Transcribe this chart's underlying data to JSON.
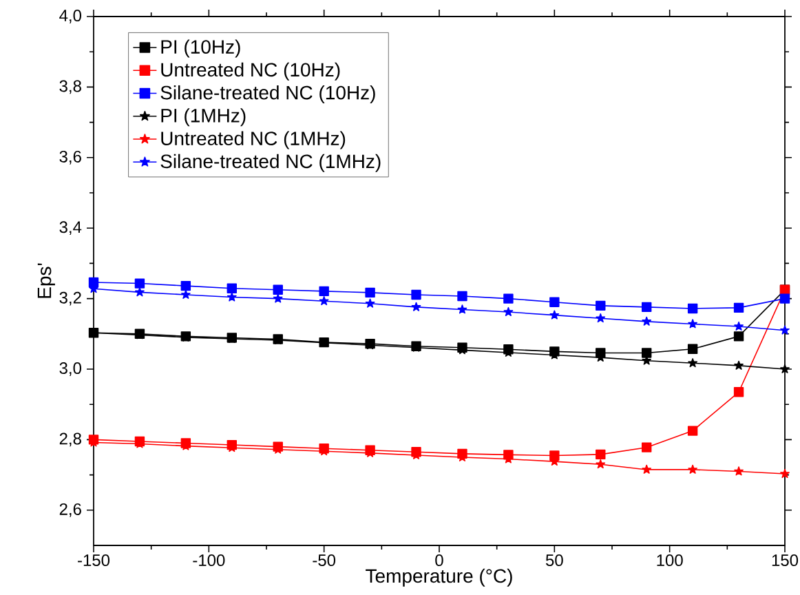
{
  "chart_data": {
    "type": "line",
    "xlabel": "Temperature (°C)",
    "ylabel": "Eps'",
    "x": [
      -150,
      -130,
      -110,
      -90,
      -70,
      -50,
      -30,
      -10,
      10,
      30,
      50,
      70,
      90,
      110,
      130,
      150
    ],
    "series": [
      {
        "name": "PI (10Hz)",
        "color": "#000000",
        "marker": "square",
        "values": [
          3.103,
          3.1,
          3.093,
          3.089,
          3.085,
          3.076,
          3.072,
          3.065,
          3.061,
          3.056,
          3.05,
          3.046,
          3.046,
          3.057,
          3.093,
          3.225
        ]
      },
      {
        "name": "Untreated NC (10Hz)",
        "color": "#ff0000",
        "marker": "square",
        "values": [
          2.8,
          2.795,
          2.79,
          2.785,
          2.78,
          2.775,
          2.77,
          2.765,
          2.76,
          2.757,
          2.755,
          2.758,
          2.778,
          2.825,
          2.935,
          3.225
        ]
      },
      {
        "name": "Silane-treated NC (10Hz)",
        "color": "#0000ff",
        "marker": "square",
        "values": [
          3.246,
          3.243,
          3.236,
          3.229,
          3.225,
          3.221,
          3.217,
          3.211,
          3.207,
          3.2,
          3.19,
          3.18,
          3.176,
          3.172,
          3.174,
          3.2
        ]
      },
      {
        "name": "PI (1MHz)",
        "color": "#000000",
        "marker": "star",
        "values": [
          3.103,
          3.097,
          3.09,
          3.086,
          3.082,
          3.075,
          3.068,
          3.061,
          3.054,
          3.047,
          3.04,
          3.033,
          3.024,
          3.017,
          3.01,
          3.0
        ]
      },
      {
        "name": "Untreated NC (1MHz)",
        "color": "#ff0000",
        "marker": "star",
        "values": [
          2.792,
          2.788,
          2.782,
          2.777,
          2.772,
          2.767,
          2.762,
          2.756,
          2.75,
          2.745,
          2.738,
          2.73,
          2.715,
          2.715,
          2.71,
          2.703
        ]
      },
      {
        "name": "Silane-treated NC (1MHz)",
        "color": "#0000ff",
        "marker": "star",
        "values": [
          3.228,
          3.218,
          3.211,
          3.204,
          3.2,
          3.193,
          3.186,
          3.176,
          3.169,
          3.162,
          3.153,
          3.144,
          3.135,
          3.128,
          3.121,
          3.11
        ]
      }
    ],
    "xlim": [
      -150,
      150
    ],
    "xticks": [
      -150,
      -100,
      -50,
      0,
      50,
      100,
      150
    ],
    "ylim": [
      2.5,
      4.0
    ],
    "yticks": [
      {
        "value": 2.6,
        "label": "2,6"
      },
      {
        "value": 2.8,
        "label": "2,8"
      },
      {
        "value": 3.0,
        "label": "3,0"
      },
      {
        "value": 3.2,
        "label": "3,2"
      },
      {
        "value": 3.4,
        "label": "3,4"
      },
      {
        "value": 3.6,
        "label": "3,6"
      },
      {
        "value": 3.8,
        "label": "3,8"
      },
      {
        "value": 4.0,
        "label": "4,0"
      }
    ],
    "legend": "top left",
    "line_style": "solid",
    "grid": false
  }
}
